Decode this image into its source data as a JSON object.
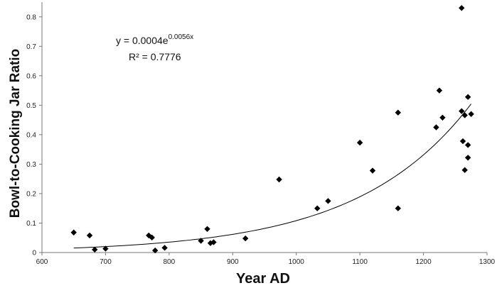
{
  "chart_data": {
    "type": "scatter",
    "xlabel": "Year AD",
    "ylabel": "Bowl-to-Cooking Jar Ratio",
    "xlim": [
      600,
      1300
    ],
    "ylim": [
      0,
      0.85
    ],
    "xticks": [
      600,
      700,
      800,
      900,
      1000,
      1100,
      1200,
      1300
    ],
    "yticks": [
      0,
      0.1,
      0.2,
      0.3,
      0.4,
      0.5,
      0.6,
      0.7,
      0.8
    ],
    "grid": false,
    "legend": "none",
    "marker": "diamond",
    "marker_color": "#000000",
    "series": [
      {
        "points": [
          [
            650,
            0.068
          ],
          [
            675,
            0.058
          ],
          [
            683,
            0.01
          ],
          [
            700,
            0.013
          ],
          [
            768,
            0.058
          ],
          [
            773,
            0.051
          ],
          [
            778,
            0.007
          ],
          [
            793,
            0.016
          ],
          [
            850,
            0.04
          ],
          [
            860,
            0.08
          ],
          [
            865,
            0.032
          ],
          [
            870,
            0.035
          ],
          [
            920,
            0.048
          ],
          [
            973,
            0.248
          ],
          [
            1033,
            0.15
          ],
          [
            1050,
            0.175
          ],
          [
            1100,
            0.373
          ],
          [
            1120,
            0.278
          ],
          [
            1160,
            0.475
          ],
          [
            1160,
            0.15
          ],
          [
            1220,
            0.425
          ],
          [
            1225,
            0.55
          ],
          [
            1230,
            0.458
          ],
          [
            1260,
            0.83
          ],
          [
            1260,
            0.48
          ],
          [
            1262,
            0.378
          ],
          [
            1265,
            0.466
          ],
          [
            1265,
            0.28
          ],
          [
            1270,
            0.528
          ],
          [
            1270,
            0.365
          ],
          [
            1270,
            0.322
          ],
          [
            1275,
            0.47
          ]
        ]
      }
    ],
    "trendline": {
      "type": "exponential",
      "a": 0.0004,
      "b": 0.0056,
      "x_range": [
        650,
        1275
      ],
      "equation_base": "y = 0.0004e",
      "equation_exponent": "0.0056x",
      "r2_label": "R² = 0.7776"
    }
  }
}
